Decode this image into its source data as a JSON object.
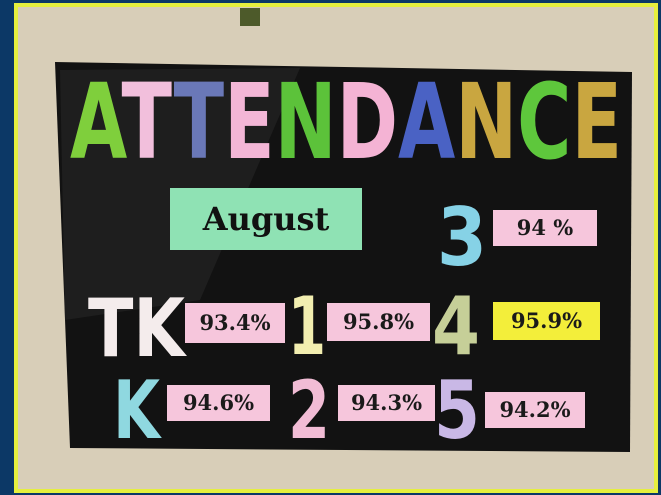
{
  "title": "ATTENDANCE",
  "title_colors": [
    "#7fcf3c",
    "#f2bfdc",
    "#6a78b8",
    "#f3b6d6",
    "#5cc23a",
    "#f4b3d4",
    "#4a62c4",
    "#c9a640",
    "#5ec73c",
    "#c9a640"
  ],
  "month": "August",
  "grades": [
    {
      "label": "TK",
      "rate": "93.4%",
      "color": "#f4ecec",
      "box": "#f6c6dc"
    },
    {
      "label": "K",
      "rate": "94.6%",
      "color": "#8fd8e0",
      "box": "#f6c6dc"
    },
    {
      "label": "1",
      "rate": "95.8%",
      "color": "#f2eeb0",
      "box": "#f6c6dc"
    },
    {
      "label": "2",
      "rate": "94.3%",
      "color": "#f1bcd5",
      "box": "#f6c6dc"
    },
    {
      "label": "3",
      "rate": "94 %",
      "color": "#86d2e6",
      "box": "#f6c6dc"
    },
    {
      "label": "4",
      "rate": "95.9%",
      "color": "#c6cf98",
      "box": "#f3ee3a"
    },
    {
      "label": "5",
      "rate": "94.2%",
      "color": "#c9b8e6",
      "box": "#f6c6dc"
    }
  ]
}
